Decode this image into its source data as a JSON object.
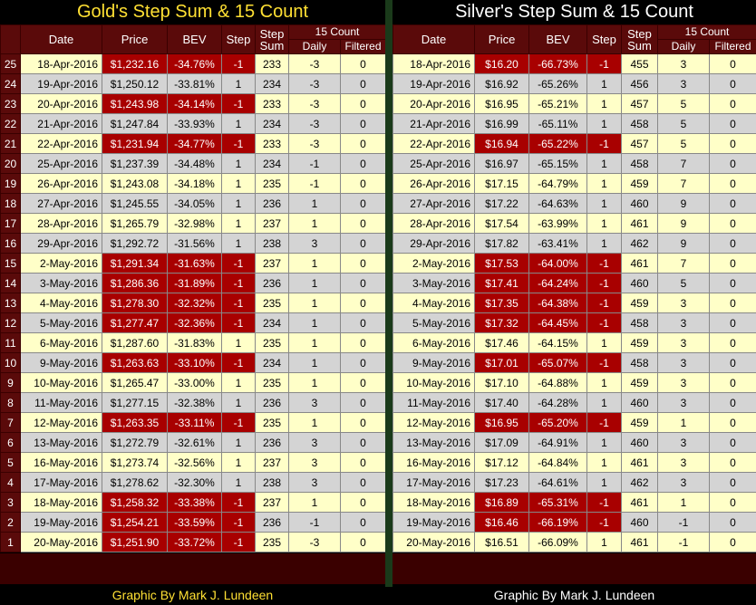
{
  "gold": {
    "title": "Gold's Step Sum & 15 Count",
    "headers": {
      "date": "Date",
      "price": "Price",
      "bev": "BEV",
      "step": "Step",
      "step_sum_1": "Step",
      "step_sum_2": "Sum",
      "count": "15 Count",
      "daily": "Daily",
      "filtered": "Filtered"
    },
    "credit": "Graphic By Mark J. Lundeen",
    "rows": [
      {
        "n": "25",
        "date": "18-Apr-2016",
        "price": "$1,232.16",
        "bev": "-34.76%",
        "step": "-1",
        "sum": "233",
        "daily": "-3",
        "filtered": "0",
        "neg": true
      },
      {
        "n": "24",
        "date": "19-Apr-2016",
        "price": "$1,250.12",
        "bev": "-33.81%",
        "step": "1",
        "sum": "234",
        "daily": "-3",
        "filtered": "0",
        "neg": false
      },
      {
        "n": "23",
        "date": "20-Apr-2016",
        "price": "$1,243.98",
        "bev": "-34.14%",
        "step": "-1",
        "sum": "233",
        "daily": "-3",
        "filtered": "0",
        "neg": true
      },
      {
        "n": "22",
        "date": "21-Apr-2016",
        "price": "$1,247.84",
        "bev": "-33.93%",
        "step": "1",
        "sum": "234",
        "daily": "-3",
        "filtered": "0",
        "neg": false
      },
      {
        "n": "21",
        "date": "22-Apr-2016",
        "price": "$1,231.94",
        "bev": "-34.77%",
        "step": "-1",
        "sum": "233",
        "daily": "-3",
        "filtered": "0",
        "neg": true
      },
      {
        "n": "20",
        "date": "25-Apr-2016",
        "price": "$1,237.39",
        "bev": "-34.48%",
        "step": "1",
        "sum": "234",
        "daily": "-1",
        "filtered": "0",
        "neg": false
      },
      {
        "n": "19",
        "date": "26-Apr-2016",
        "price": "$1,243.08",
        "bev": "-34.18%",
        "step": "1",
        "sum": "235",
        "daily": "-1",
        "filtered": "0",
        "neg": false
      },
      {
        "n": "18",
        "date": "27-Apr-2016",
        "price": "$1,245.55",
        "bev": "-34.05%",
        "step": "1",
        "sum": "236",
        "daily": "1",
        "filtered": "0",
        "neg": false
      },
      {
        "n": "17",
        "date": "28-Apr-2016",
        "price": "$1,265.79",
        "bev": "-32.98%",
        "step": "1",
        "sum": "237",
        "daily": "1",
        "filtered": "0",
        "neg": false
      },
      {
        "n": "16",
        "date": "29-Apr-2016",
        "price": "$1,292.72",
        "bev": "-31.56%",
        "step": "1",
        "sum": "238",
        "daily": "3",
        "filtered": "0",
        "neg": false
      },
      {
        "n": "15",
        "date": "2-May-2016",
        "price": "$1,291.34",
        "bev": "-31.63%",
        "step": "-1",
        "sum": "237",
        "daily": "1",
        "filtered": "0",
        "neg": true
      },
      {
        "n": "14",
        "date": "3-May-2016",
        "price": "$1,286.36",
        "bev": "-31.89%",
        "step": "-1",
        "sum": "236",
        "daily": "1",
        "filtered": "0",
        "neg": true
      },
      {
        "n": "13",
        "date": "4-May-2016",
        "price": "$1,278.30",
        "bev": "-32.32%",
        "step": "-1",
        "sum": "235",
        "daily": "1",
        "filtered": "0",
        "neg": true
      },
      {
        "n": "12",
        "date": "5-May-2016",
        "price": "$1,277.47",
        "bev": "-32.36%",
        "step": "-1",
        "sum": "234",
        "daily": "1",
        "filtered": "0",
        "neg": true
      },
      {
        "n": "11",
        "date": "6-May-2016",
        "price": "$1,287.60",
        "bev": "-31.83%",
        "step": "1",
        "sum": "235",
        "daily": "1",
        "filtered": "0",
        "neg": false
      },
      {
        "n": "10",
        "date": "9-May-2016",
        "price": "$1,263.63",
        "bev": "-33.10%",
        "step": "-1",
        "sum": "234",
        "daily": "1",
        "filtered": "0",
        "neg": true
      },
      {
        "n": "9",
        "date": "10-May-2016",
        "price": "$1,265.47",
        "bev": "-33.00%",
        "step": "1",
        "sum": "235",
        "daily": "1",
        "filtered": "0",
        "neg": false
      },
      {
        "n": "8",
        "date": "11-May-2016",
        "price": "$1,277.15",
        "bev": "-32.38%",
        "step": "1",
        "sum": "236",
        "daily": "3",
        "filtered": "0",
        "neg": false
      },
      {
        "n": "7",
        "date": "12-May-2016",
        "price": "$1,263.35",
        "bev": "-33.11%",
        "step": "-1",
        "sum": "235",
        "daily": "1",
        "filtered": "0",
        "neg": true
      },
      {
        "n": "6",
        "date": "13-May-2016",
        "price": "$1,272.79",
        "bev": "-32.61%",
        "step": "1",
        "sum": "236",
        "daily": "3",
        "filtered": "0",
        "neg": false
      },
      {
        "n": "5",
        "date": "16-May-2016",
        "price": "$1,273.74",
        "bev": "-32.56%",
        "step": "1",
        "sum": "237",
        "daily": "3",
        "filtered": "0",
        "neg": false
      },
      {
        "n": "4",
        "date": "17-May-2016",
        "price": "$1,278.62",
        "bev": "-32.30%",
        "step": "1",
        "sum": "238",
        "daily": "3",
        "filtered": "0",
        "neg": false
      },
      {
        "n": "3",
        "date": "18-May-2016",
        "price": "$1,258.32",
        "bev": "-33.38%",
        "step": "-1",
        "sum": "237",
        "daily": "1",
        "filtered": "0",
        "neg": true
      },
      {
        "n": "2",
        "date": "19-May-2016",
        "price": "$1,254.21",
        "bev": "-33.59%",
        "step": "-1",
        "sum": "236",
        "daily": "-1",
        "filtered": "0",
        "neg": true
      },
      {
        "n": "1",
        "date": "20-May-2016",
        "price": "$1,251.90",
        "bev": "-33.72%",
        "step": "-1",
        "sum": "235",
        "daily": "-3",
        "filtered": "0",
        "neg": true
      }
    ]
  },
  "silver": {
    "title": "Silver's Step Sum & 15 Count",
    "headers": {
      "date": "Date",
      "price": "Price",
      "bev": "BEV",
      "step": "Step",
      "step_sum_1": "Step",
      "step_sum_2": "Sum",
      "count": "15 Count",
      "daily": "Daily",
      "filtered": "Filtered"
    },
    "credit": "Graphic By Mark J. Lundeen",
    "rows": [
      {
        "date": "18-Apr-2016",
        "price": "$16.20",
        "bev": "-66.73%",
        "step": "-1",
        "sum": "455",
        "daily": "3",
        "filtered": "0",
        "neg": true
      },
      {
        "date": "19-Apr-2016",
        "price": "$16.92",
        "bev": "-65.26%",
        "step": "1",
        "sum": "456",
        "daily": "3",
        "filtered": "0",
        "neg": false
      },
      {
        "date": "20-Apr-2016",
        "price": "$16.95",
        "bev": "-65.21%",
        "step": "1",
        "sum": "457",
        "daily": "5",
        "filtered": "0",
        "neg": false
      },
      {
        "date": "21-Apr-2016",
        "price": "$16.99",
        "bev": "-65.11%",
        "step": "1",
        "sum": "458",
        "daily": "5",
        "filtered": "0",
        "neg": false
      },
      {
        "date": "22-Apr-2016",
        "price": "$16.94",
        "bev": "-65.22%",
        "step": "-1",
        "sum": "457",
        "daily": "5",
        "filtered": "0",
        "neg": true
      },
      {
        "date": "25-Apr-2016",
        "price": "$16.97",
        "bev": "-65.15%",
        "step": "1",
        "sum": "458",
        "daily": "7",
        "filtered": "0",
        "neg": false
      },
      {
        "date": "26-Apr-2016",
        "price": "$17.15",
        "bev": "-64.79%",
        "step": "1",
        "sum": "459",
        "daily": "7",
        "filtered": "0",
        "neg": false
      },
      {
        "date": "27-Apr-2016",
        "price": "$17.22",
        "bev": "-64.63%",
        "step": "1",
        "sum": "460",
        "daily": "9",
        "filtered": "0",
        "neg": false
      },
      {
        "date": "28-Apr-2016",
        "price": "$17.54",
        "bev": "-63.99%",
        "step": "1",
        "sum": "461",
        "daily": "9",
        "filtered": "0",
        "neg": false
      },
      {
        "date": "29-Apr-2016",
        "price": "$17.82",
        "bev": "-63.41%",
        "step": "1",
        "sum": "462",
        "daily": "9",
        "filtered": "0",
        "neg": false
      },
      {
        "date": "2-May-2016",
        "price": "$17.53",
        "bev": "-64.00%",
        "step": "-1",
        "sum": "461",
        "daily": "7",
        "filtered": "0",
        "neg": true
      },
      {
        "date": "3-May-2016",
        "price": "$17.41",
        "bev": "-64.24%",
        "step": "-1",
        "sum": "460",
        "daily": "5",
        "filtered": "0",
        "neg": true
      },
      {
        "date": "4-May-2016",
        "price": "$17.35",
        "bev": "-64.38%",
        "step": "-1",
        "sum": "459",
        "daily": "3",
        "filtered": "0",
        "neg": true
      },
      {
        "date": "5-May-2016",
        "price": "$17.32",
        "bev": "-64.45%",
        "step": "-1",
        "sum": "458",
        "daily": "3",
        "filtered": "0",
        "neg": true
      },
      {
        "date": "6-May-2016",
        "price": "$17.46",
        "bev": "-64.15%",
        "step": "1",
        "sum": "459",
        "daily": "3",
        "filtered": "0",
        "neg": false
      },
      {
        "date": "9-May-2016",
        "price": "$17.01",
        "bev": "-65.07%",
        "step": "-1",
        "sum": "458",
        "daily": "3",
        "filtered": "0",
        "neg": true
      },
      {
        "date": "10-May-2016",
        "price": "$17.10",
        "bev": "-64.88%",
        "step": "1",
        "sum": "459",
        "daily": "3",
        "filtered": "0",
        "neg": false
      },
      {
        "date": "11-May-2016",
        "price": "$17.40",
        "bev": "-64.28%",
        "step": "1",
        "sum": "460",
        "daily": "3",
        "filtered": "0",
        "neg": false
      },
      {
        "date": "12-May-2016",
        "price": "$16.95",
        "bev": "-65.20%",
        "step": "-1",
        "sum": "459",
        "daily": "1",
        "filtered": "0",
        "neg": true
      },
      {
        "date": "13-May-2016",
        "price": "$17.09",
        "bev": "-64.91%",
        "step": "1",
        "sum": "460",
        "daily": "3",
        "filtered": "0",
        "neg": false
      },
      {
        "date": "16-May-2016",
        "price": "$17.12",
        "bev": "-64.84%",
        "step": "1",
        "sum": "461",
        "daily": "3",
        "filtered": "0",
        "neg": false
      },
      {
        "date": "17-May-2016",
        "price": "$17.23",
        "bev": "-64.61%",
        "step": "1",
        "sum": "462",
        "daily": "3",
        "filtered": "0",
        "neg": false
      },
      {
        "date": "18-May-2016",
        "price": "$16.89",
        "bev": "-65.31%",
        "step": "-1",
        "sum": "461",
        "daily": "1",
        "filtered": "0",
        "neg": true
      },
      {
        "date": "19-May-2016",
        "price": "$16.46",
        "bev": "-66.19%",
        "step": "-1",
        "sum": "460",
        "daily": "-1",
        "filtered": "0",
        "neg": true
      },
      {
        "date": "20-May-2016",
        "price": "$16.51",
        "bev": "-66.09%",
        "step": "1",
        "sum": "461",
        "daily": "-1",
        "filtered": "0",
        "neg": false
      }
    ]
  },
  "colors": {
    "header_bg": "#5a0a0a",
    "negative_bg": "#a80000",
    "odd_row": "#ffffc8",
    "even_row": "#d4d4d4",
    "gold_title": "#ffe033",
    "silver_title": "#ffffff"
  }
}
